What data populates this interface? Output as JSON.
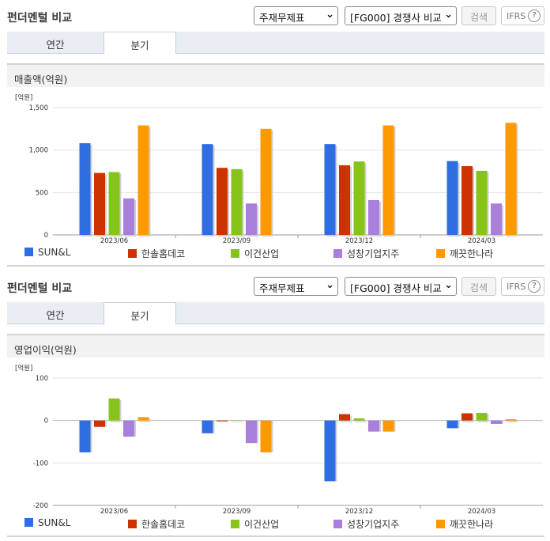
{
  "panels": [
    {
      "title": "펀더멘털 비교",
      "select_statement": "주재무제표",
      "select_compare": "[FG000] 경쟁사 비교",
      "search_label": "검색",
      "ifrs_label": "IFRS",
      "tabs": [
        "연간",
        "분기"
      ],
      "active_tab": "분기",
      "section_title": "매출액(억원)"
    },
    {
      "title": "펀더멘털 비교",
      "select_statement": "주재무제표",
      "select_compare": "[FG000] 경쟁사 비교",
      "search_label": "검색",
      "ifrs_label": "IFRS",
      "tabs": [
        "연간",
        "분기"
      ],
      "active_tab": "분기",
      "section_title": "영업이익(억원)"
    }
  ],
  "chart_data": [
    {
      "type": "bar",
      "unit_label": "[억원]",
      "categories": [
        "2023/06",
        "2023/09",
        "2023/12",
        "2024/03"
      ],
      "ylim": [
        0,
        1500
      ],
      "yticks": [
        0,
        500,
        1000,
        1500
      ],
      "ytick_labels": [
        "0",
        "500",
        "1,000",
        "1,500"
      ],
      "grid": true,
      "legend": "bottom",
      "series": [
        {
          "name": "SUN&L",
          "color": "#2f6ee0",
          "values": [
            1080,
            1070,
            1070,
            870
          ]
        },
        {
          "name": "한솔홈데코",
          "color": "#cc3300",
          "values": [
            730,
            790,
            820,
            810
          ]
        },
        {
          "name": "이건산업",
          "color": "#86c41a",
          "values": [
            740,
            775,
            865,
            755
          ]
        },
        {
          "name": "성창기업지주",
          "color": "#a87fdb",
          "values": [
            430,
            370,
            410,
            370
          ]
        },
        {
          "name": "깨끗한나라",
          "color": "#ff9900",
          "values": [
            1290,
            1250,
            1290,
            1320
          ]
        }
      ]
    },
    {
      "type": "bar",
      "unit_label": "[억원]",
      "categories": [
        "2023/06",
        "2023/09",
        "2023/12",
        "2024/03"
      ],
      "ylim": [
        -200,
        100
      ],
      "yticks": [
        -200,
        -100,
        0,
        100
      ],
      "ytick_labels": [
        "-200",
        "-100",
        "0",
        "100"
      ],
      "grid": true,
      "legend": "bottom",
      "series": [
        {
          "name": "SUN&L",
          "color": "#2f6ee0",
          "values": [
            -75,
            -30,
            -143,
            -18
          ]
        },
        {
          "name": "한솔홈데코",
          "color": "#cc3300",
          "values": [
            -15,
            -2,
            15,
            17
          ]
        },
        {
          "name": "이건산업",
          "color": "#86c41a",
          "values": [
            52,
            0,
            5,
            18
          ]
        },
        {
          "name": "성창기업지주",
          "color": "#a87fdb",
          "values": [
            -38,
            -53,
            -26,
            -8
          ]
        },
        {
          "name": "깨끗한나라",
          "color": "#ff9900",
          "values": [
            8,
            -75,
            -26,
            3
          ]
        }
      ]
    }
  ]
}
